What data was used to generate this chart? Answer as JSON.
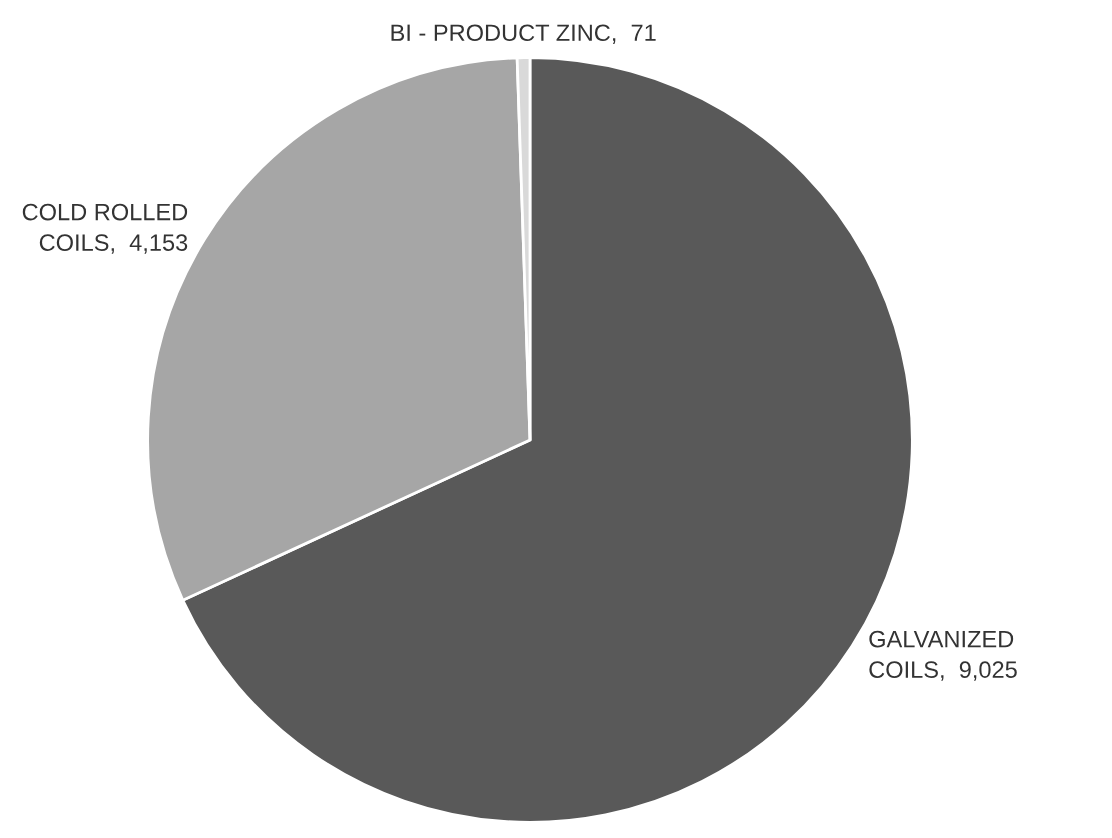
{
  "chart_data": {
    "type": "pie",
    "categories": [
      "GALVANIZED COILS",
      "COLD ROLLED COILS",
      "BI - PRODUCT ZINC"
    ],
    "values": [
      9025,
      4153,
      71
    ],
    "value_labels": [
      "9,025",
      "4,153",
      "71"
    ],
    "colors": [
      "#595959",
      "#a6a6a6",
      "#d9d9d9"
    ]
  }
}
